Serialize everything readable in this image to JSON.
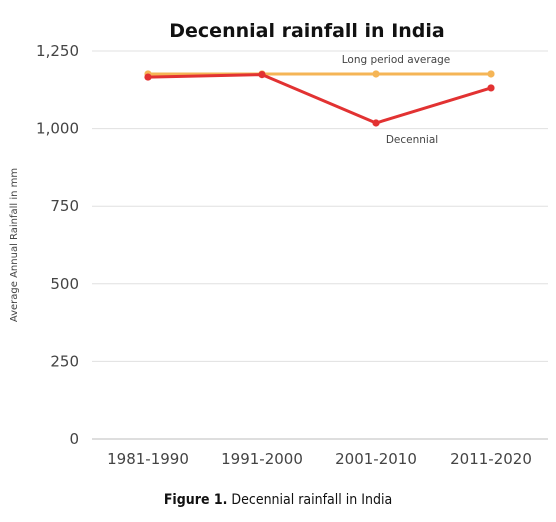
{
  "chart_data": {
    "type": "line",
    "title": "Decennial rainfall in India",
    "xlabel": "",
    "ylabel": "Average Annual Rainfall in mm",
    "categories": [
      "1981-1990",
      "1991-2000",
      "2001-2010",
      "2011-2020"
    ],
    "ylim": [
      0,
      1250
    ],
    "yticks": [
      0,
      250,
      500,
      750,
      "1,000",
      "1,250"
    ],
    "ytick_values": [
      0,
      250,
      500,
      750,
      1000,
      1250
    ],
    "grid": "horizontal",
    "series": [
      {
        "name": "Long period average",
        "values": [
          1176,
          1176,
          1176,
          1176
        ],
        "color": "#f5b556"
      },
      {
        "name": "Decennial",
        "values": [
          1166,
          1174,
          1018,
          1131
        ],
        "color": "#e23232"
      }
    ]
  },
  "caption": {
    "prefix": "Figure 1.",
    "text": " Decennial rainfall in India"
  }
}
